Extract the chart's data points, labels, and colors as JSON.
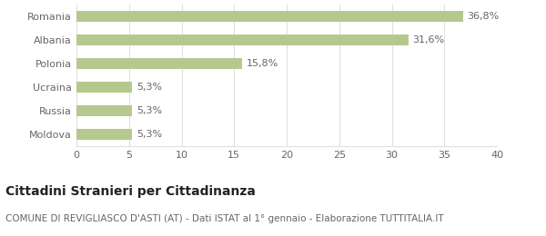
{
  "categories": [
    "Moldova",
    "Russia",
    "Ucraina",
    "Polonia",
    "Albania",
    "Romania"
  ],
  "values": [
    5.3,
    5.3,
    5.3,
    15.8,
    31.6,
    36.8
  ],
  "labels": [
    "5,3%",
    "5,3%",
    "5,3%",
    "15,8%",
    "31,6%",
    "36,8%"
  ],
  "bar_color": "#b5c98e",
  "background_color": "#ffffff",
  "xlim": [
    0,
    40
  ],
  "xticks": [
    0,
    5,
    10,
    15,
    20,
    25,
    30,
    35,
    40
  ],
  "title": "Cittadini Stranieri per Cittadinanza",
  "subtitle": "COMUNE DI REVIGLIASCO D'ASTI (AT) - Dati ISTAT al 1° gennaio - Elaborazione TUTTITALIA.IT",
  "title_fontsize": 10,
  "subtitle_fontsize": 7.5,
  "label_fontsize": 8,
  "tick_fontsize": 8,
  "ytick_fontsize": 8,
  "grid_color": "#e0e0e0",
  "text_color": "#666666",
  "bar_height": 0.45
}
